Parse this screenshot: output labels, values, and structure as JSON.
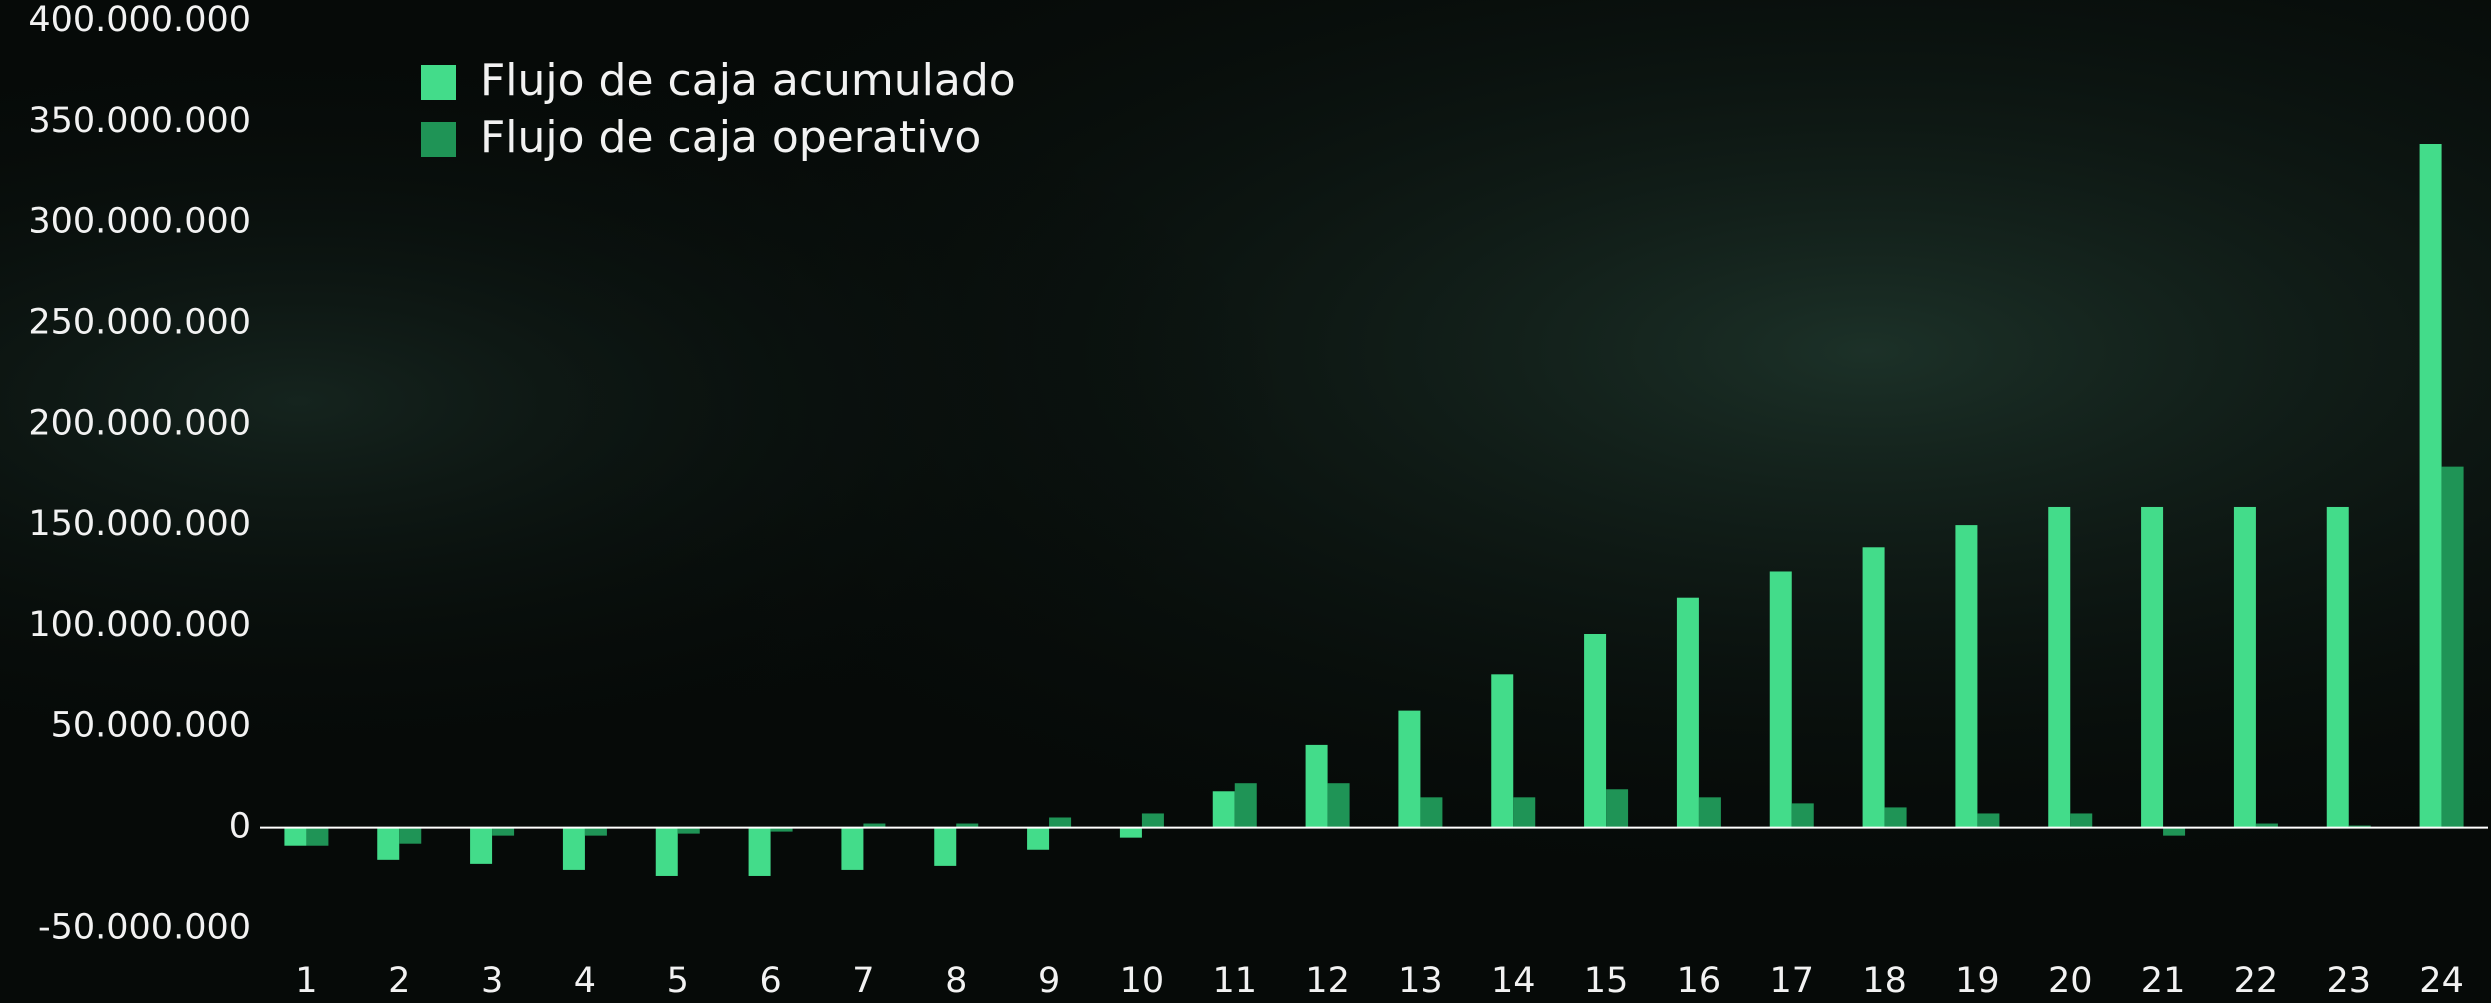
{
  "chart_data": {
    "type": "bar",
    "categories": [
      "1",
      "2",
      "3",
      "4",
      "5",
      "6",
      "7",
      "8",
      "9",
      "10",
      "11",
      "12",
      "13",
      "14",
      "15",
      "16",
      "17",
      "18",
      "19",
      "20",
      "21",
      "22",
      "23",
      "24"
    ],
    "series": [
      {
        "name": "Flujo de caja acumulado",
        "color": "#43dc8a",
        "values": [
          -9000000,
          -16000000,
          -18000000,
          -21000000,
          -24000000,
          -24000000,
          -21000000,
          -19000000,
          -11000000,
          -5000000,
          18000000,
          41000000,
          58000000,
          76000000,
          96000000,
          114000000,
          127000000,
          139000000,
          150000000,
          159000000,
          159000000,
          159000000,
          159000000,
          339000000
        ]
      },
      {
        "name": "Flujo de caja operativo",
        "color": "#1f9456",
        "values": [
          -9000000,
          -8000000,
          -4000000,
          -4000000,
          -3000000,
          -2000000,
          2000000,
          2000000,
          5000000,
          7000000,
          22000000,
          22000000,
          15000000,
          15000000,
          19000000,
          15000000,
          12000000,
          10000000,
          7000000,
          7000000,
          -4000000,
          2000000,
          1000000,
          179000000
        ]
      }
    ],
    "ylim": [
      -87000000,
      400000000
    ],
    "yticks": [
      {
        "value": -50000000,
        "label": "-50.000.000"
      },
      0,
      {
        "value": 50000000,
        "label": "50.000.000"
      },
      {
        "value": 100000000,
        "label": "100.000.000"
      },
      {
        "value": 150000000,
        "label": "150.000.000"
      },
      {
        "value": 200000000,
        "label": "200.000.000"
      },
      {
        "value": 250000000,
        "label": "250.000.000"
      },
      {
        "value": 300000000,
        "label": "300.000.000"
      },
      {
        "value": 350000000,
        "label": "350.000.000"
      },
      {
        "value": 400000000,
        "label": "400.000.000"
      }
    ],
    "legend": "upper left"
  }
}
